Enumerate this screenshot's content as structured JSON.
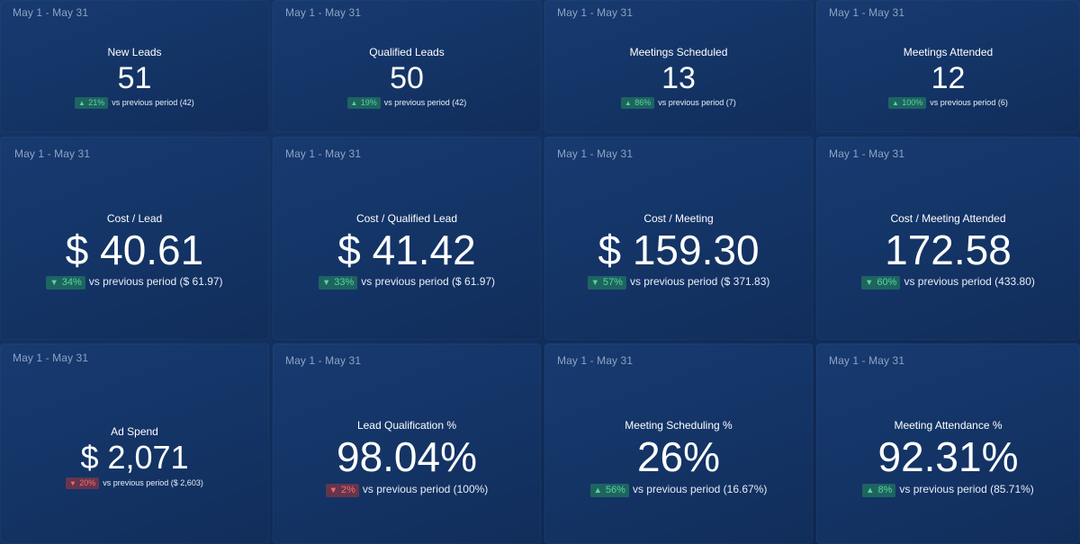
{
  "cards": [
    {
      "date": "May 1 - May 31",
      "title": "New Leads",
      "value": "51",
      "change": "21%",
      "direction": "up",
      "sentiment": "good",
      "comparison": "vs previous period (42)"
    },
    {
      "date": "May 1 - May 31",
      "title": "Qualified Leads",
      "value": "50",
      "change": "19%",
      "direction": "up",
      "sentiment": "good",
      "comparison": "vs previous period (42)"
    },
    {
      "date": "May 1 - May 31",
      "title": "Meetings Scheduled",
      "value": "13",
      "change": "86%",
      "direction": "up",
      "sentiment": "good",
      "comparison": "vs previous period (7)"
    },
    {
      "date": "May 1 - May 31",
      "title": "Meetings Attended",
      "value": "12",
      "change": "100%",
      "direction": "up",
      "sentiment": "good",
      "comparison": "vs previous period (6)"
    },
    {
      "date": "May 1 - May 31",
      "title": "Cost / Lead",
      "value": "$ 40.61",
      "change": "34%",
      "direction": "down",
      "sentiment": "good",
      "comparison": "vs previous period ($ 61.97)"
    },
    {
      "date": "May 1 - May 31",
      "title": "Cost / Qualified Lead",
      "value": "$ 41.42",
      "change": "33%",
      "direction": "down",
      "sentiment": "good",
      "comparison": "vs previous period ($ 61.97)"
    },
    {
      "date": "May 1 - May 31",
      "title": "Cost / Meeting",
      "value": "$ 159.30",
      "change": "57%",
      "direction": "down",
      "sentiment": "good",
      "comparison": "vs previous period ($ 371.83)"
    },
    {
      "date": "May 1 - May 31",
      "title": "Cost / Meeting Attended",
      "value": "172.58",
      "change": "60%",
      "direction": "down",
      "sentiment": "good",
      "comparison": "vs previous period (433.80)"
    },
    {
      "date": "May 1 - May 31",
      "title": "Ad Spend",
      "value": "$ 2,071",
      "change": "20%",
      "direction": "down",
      "sentiment": "bad",
      "comparison": "vs previous period ($ 2,603)"
    },
    {
      "date": "May 1 - May 31",
      "title": "Lead Qualification %",
      "value": "98.04%",
      "change": "2%",
      "direction": "down",
      "sentiment": "bad",
      "comparison": "vs previous period (100%)"
    },
    {
      "date": "May 1 - May 31",
      "title": "Meeting Scheduling %",
      "value": "26%",
      "change": "56%",
      "direction": "up",
      "sentiment": "good",
      "comparison": "vs previous period (16.67%)"
    },
    {
      "date": "May 1 - May 31",
      "title": "Meeting Attendance %",
      "value": "92.31%",
      "change": "8%",
      "direction": "up",
      "sentiment": "good",
      "comparison": "vs previous period (85.71%)"
    }
  ],
  "colors": {
    "background": "#12305e",
    "positive": "#56d79a",
    "negative": "#ff6a6a",
    "date_text": "#8fa3c4"
  },
  "icons": {
    "up": "triangle-up-icon",
    "down": "triangle-down-icon"
  }
}
